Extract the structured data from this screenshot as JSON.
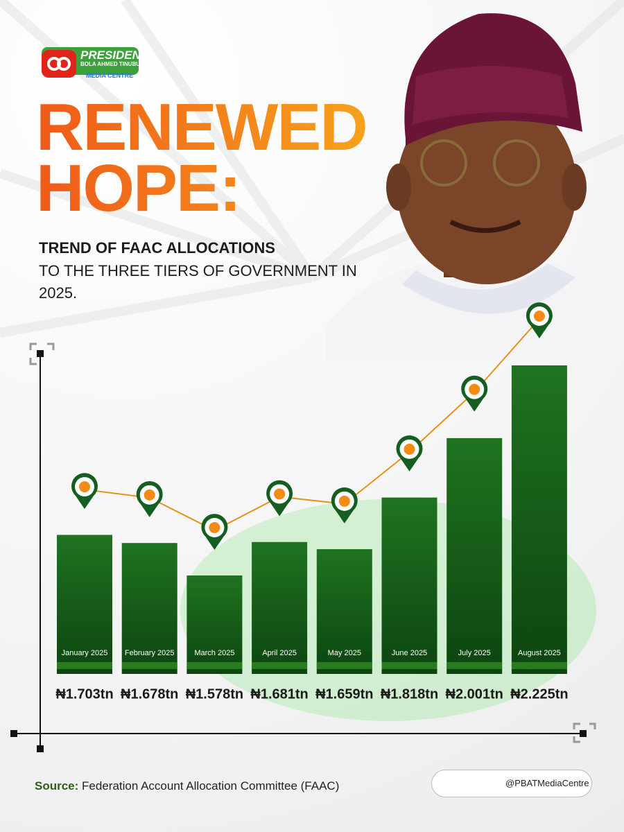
{
  "logo": {
    "line1": "PRESIDENT",
    "line2": "BOLA AHMED TINUBU",
    "line3": "MEDIA CENTRE"
  },
  "chart_data": {
    "type": "bar",
    "title": "RENEWED HOPE:",
    "subtitle_bold": "TREND OF FAAC ALLOCATIONS",
    "subtitle": "TO THE THREE TIERS OF GOVERNMENT IN 2025.",
    "categories": [
      "January 2025",
      "February 2025",
      "March 2025",
      "April 2025",
      "May 2025",
      "June 2025",
      "July 2025",
      "August 2025"
    ],
    "values": [
      1.703,
      1.678,
      1.578,
      1.681,
      1.659,
      1.818,
      2.001,
      2.225
    ],
    "value_labels": [
      "₦1.703tn",
      "₦1.678tn",
      "₦1.578tn",
      "₦1.681tn",
      "₦1.659tn",
      "₦1.818tn",
      "₦2.001tn",
      "₦2.225tn"
    ],
    "color": "#1c641c",
    "line_color": "#e8901a"
  },
  "footer": {
    "source_label": "Source:",
    "source": "Federation Account Allocation Committee (FAAC)",
    "handle": "@PBATMediaCentre"
  }
}
